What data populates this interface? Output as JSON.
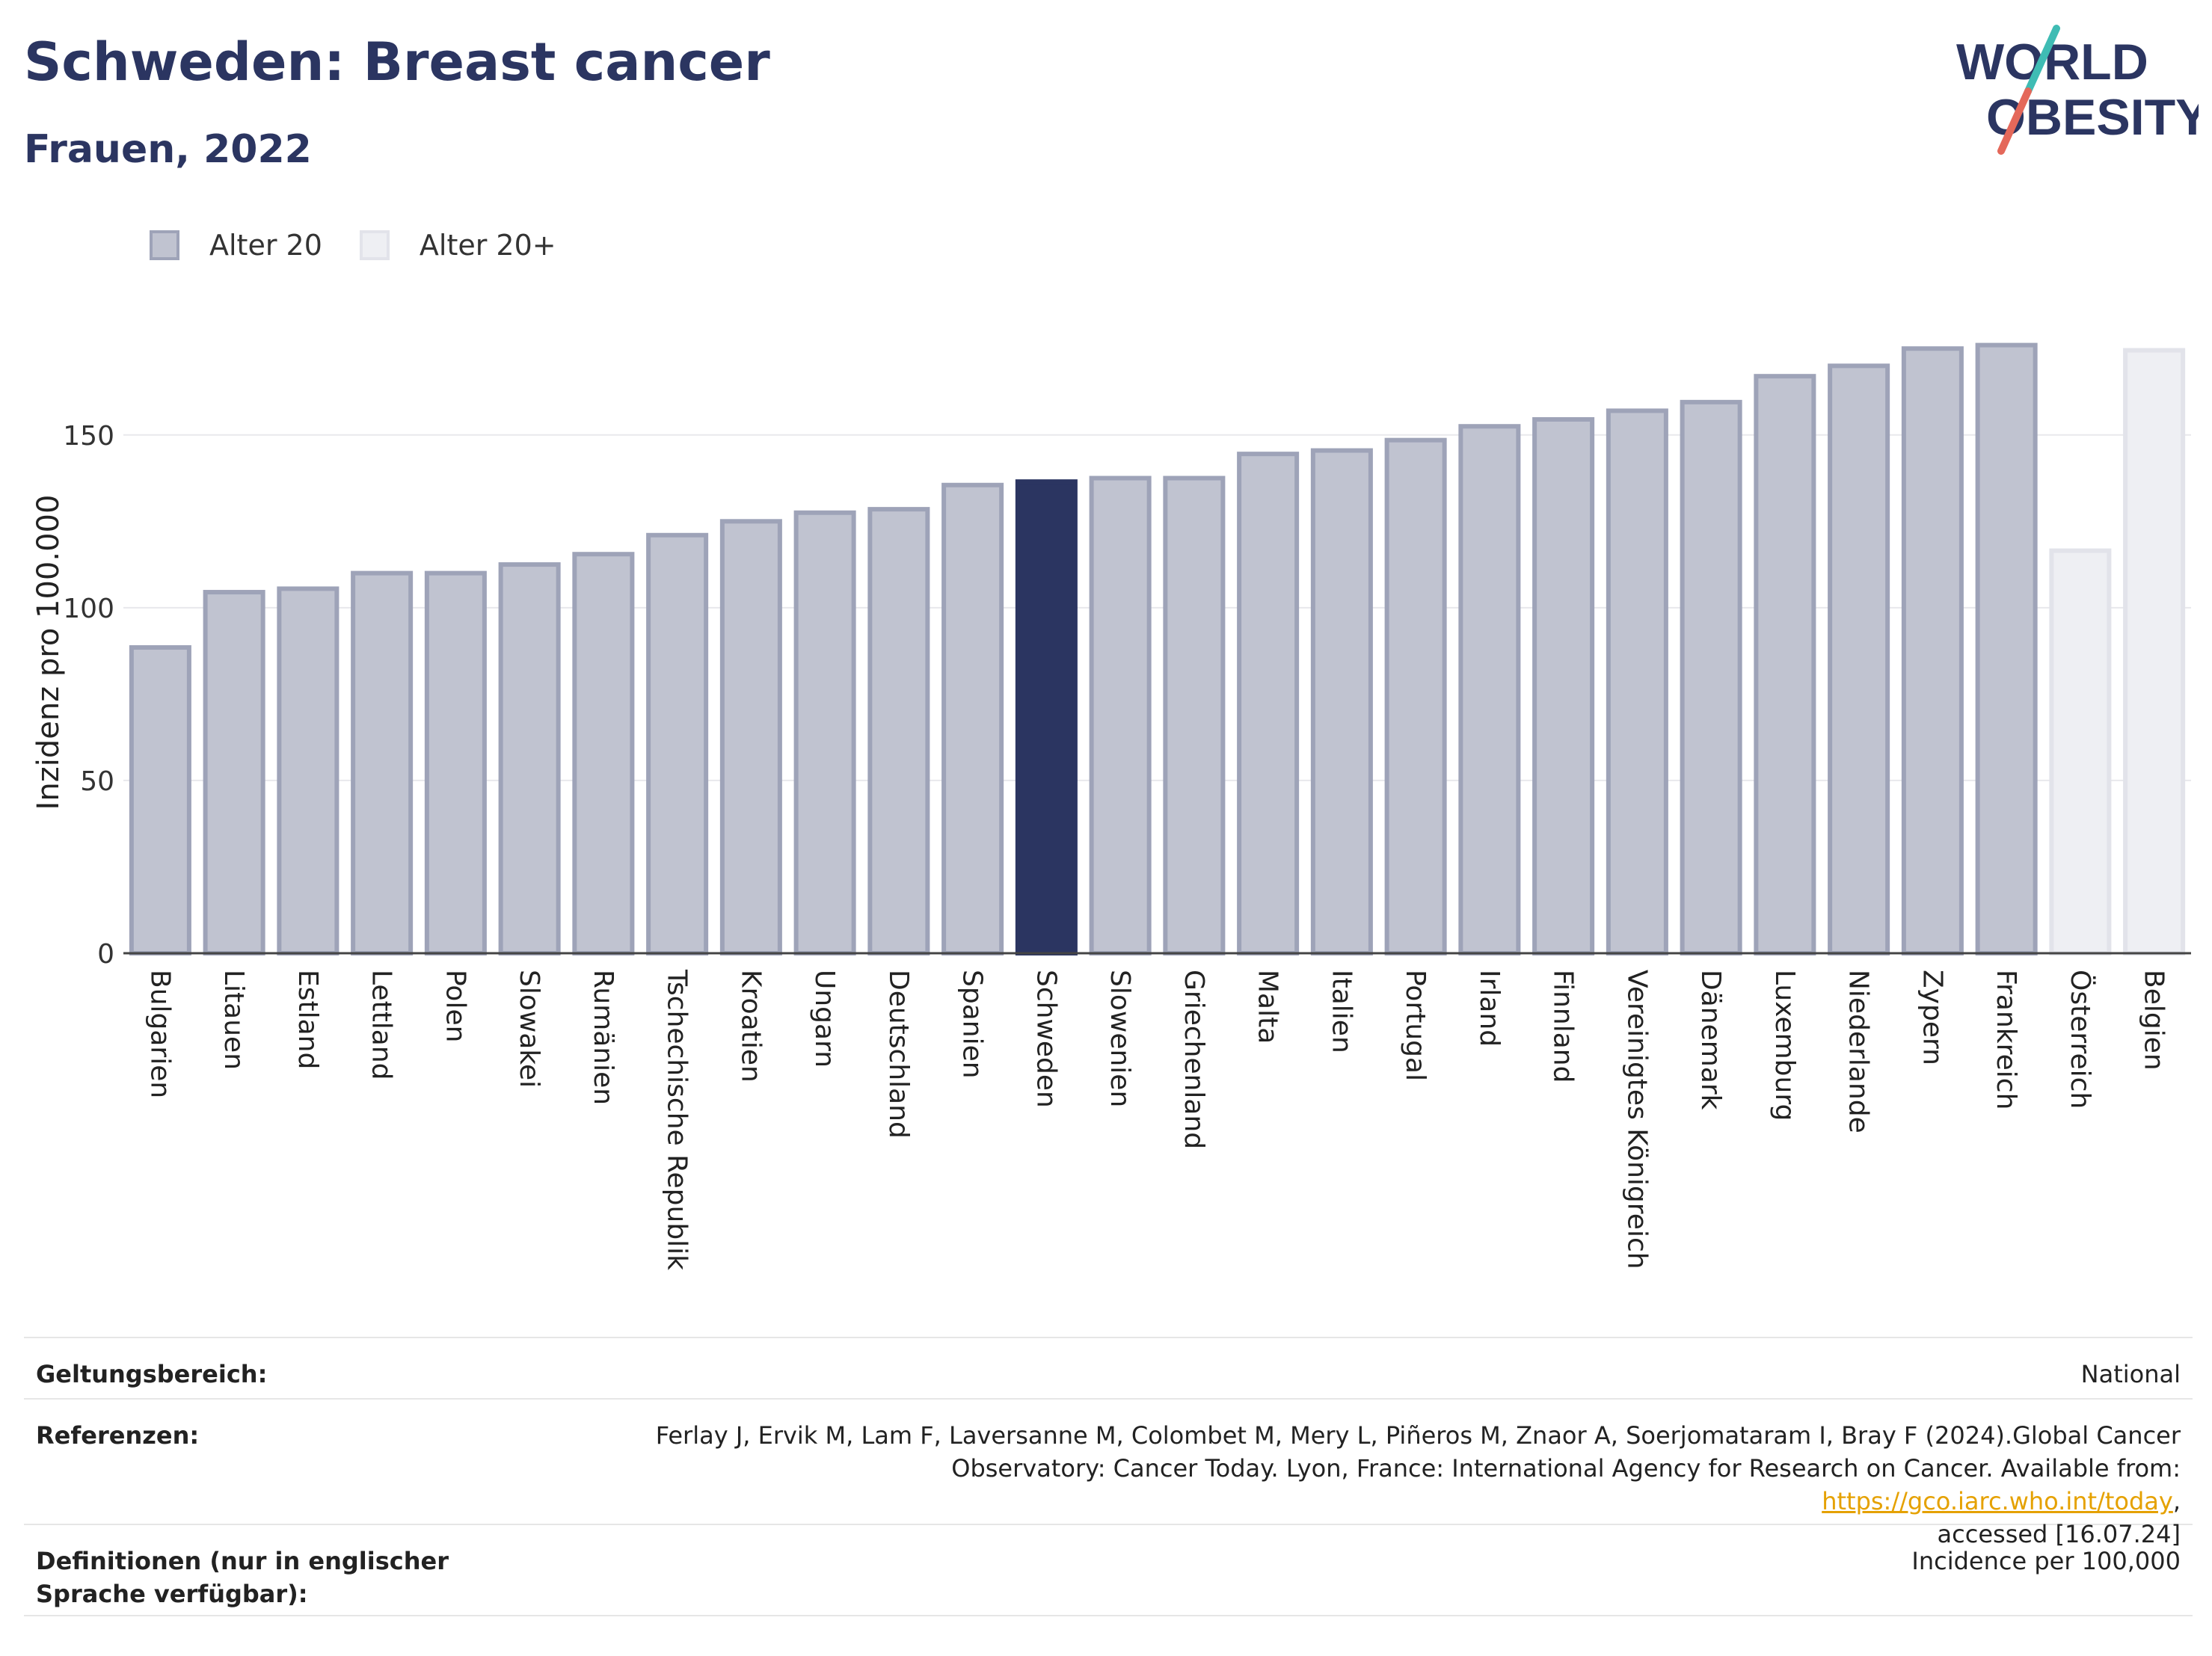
{
  "title": "Schweden: Breast cancer",
  "subtitle": "Frauen, 2022",
  "logo": {
    "line1": "WORLD",
    "line2": "OBESITY"
  },
  "colors": {
    "bar_default": "#c0c3d0",
    "bar_default_border": "#9ea3b8",
    "bar_highlight": "#2b3561",
    "bar_light": "#eeeff3",
    "bar_light_border": "#e2e3ea",
    "logo_teal": "#3fbcb4",
    "logo_red": "#e4685a"
  },
  "legend": [
    {
      "label": "Alter 20",
      "color": "#c0c3d0",
      "border": "#9ea3b8"
    },
    {
      "label": "Alter 20+",
      "color": "#eeeff3",
      "border": "#e2e3ea"
    }
  ],
  "chart_data": {
    "type": "bar",
    "ylabel": "Inzidenz pro 100.000",
    "xlabel": "",
    "ylim": [
      0,
      185
    ],
    "yticks": [
      0,
      50,
      100,
      150
    ],
    "grid": true,
    "legend_position": "top-left",
    "highlight": "Schweden",
    "categories": [
      "Bulgarien",
      "Litauen",
      "Estland",
      "Lettland",
      "Polen",
      "Slowakei",
      "Rumänien",
      "Tschechische Republik",
      "Kroatien",
      "Ungarn",
      "Deutschland",
      "Spanien",
      "Schweden",
      "Slowenien",
      "Griechenland",
      "Malta",
      "Italien",
      "Portugal",
      "Irland",
      "Finnland",
      "Vereinigtes Königreich",
      "Dänemark",
      "Luxemburg",
      "Niederlande",
      "Zypern",
      "Frankreich",
      "Österreich",
      "Belgien"
    ],
    "values": [
      88.5,
      104.5,
      105.5,
      110,
      110,
      112.5,
      115.5,
      121,
      125,
      127.5,
      128.5,
      135.5,
      136.5,
      137.5,
      137.5,
      144.5,
      145.5,
      148.5,
      152.5,
      154.5,
      157,
      159.5,
      167,
      170,
      175,
      176,
      116.5,
      174.5
    ],
    "series_group": [
      "Alter 20",
      "Alter 20",
      "Alter 20",
      "Alter 20",
      "Alter 20",
      "Alter 20",
      "Alter 20",
      "Alter 20",
      "Alter 20",
      "Alter 20",
      "Alter 20",
      "Alter 20",
      "Alter 20",
      "Alter 20",
      "Alter 20",
      "Alter 20",
      "Alter 20",
      "Alter 20",
      "Alter 20",
      "Alter 20",
      "Alter 20",
      "Alter 20",
      "Alter 20",
      "Alter 20",
      "Alter 20",
      "Alter 20",
      "Alter 20+",
      "Alter 20+"
    ]
  },
  "footer": {
    "scope_label": "Geltungsbereich:",
    "scope_value": "National",
    "references_label": "Referenzen:",
    "references_line1": "Ferlay J, Ervik M, Lam F, Laversanne M, Colombet M, Mery L, Piñeros M, Znaor A, Soerjomataram I, Bray F (2024).Global Cancer",
    "references_line2": "Observatory: Cancer Today. Lyon, France: International Agency for Research on Cancer. Available from: ",
    "references_link": "https://gco.iarc.who.int/today",
    "references_line2_end": ",",
    "references_line3": "accessed [16.07.24]",
    "definitions_label": "Definitionen (nur in englischer Sprache verfügbar):",
    "definitions_value": "Incidence per 100,000"
  }
}
